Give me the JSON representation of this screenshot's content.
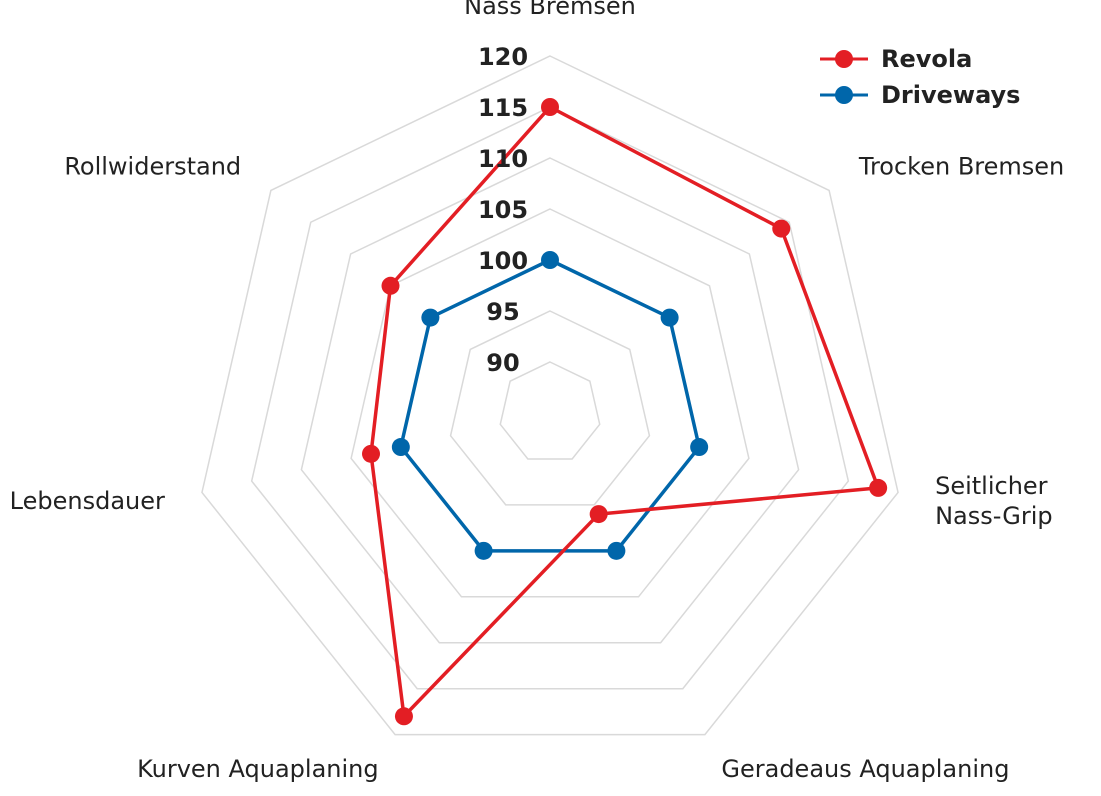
{
  "chart_data": {
    "type": "radar",
    "title": "",
    "axes": [
      "Nass Bremsen",
      "Trocken Bremsen",
      "Seitlicher Nass-Grip",
      "Geradeaus Aquaplaning",
      "Kurven Aquaplaning",
      "Lebensdauer",
      "Rollwiderstand"
    ],
    "axis_labels": [
      [
        "Nass Bremsen"
      ],
      [
        "Trocken Bremsen"
      ],
      [
        "Seitlicher",
        "Nass-Grip"
      ],
      [
        "Geradeaus Aquaplaning"
      ],
      [
        "Kurven Aquaplaning"
      ],
      [
        "Lebensdauer"
      ],
      [
        "Rollwiderstand"
      ]
    ],
    "range": [
      90,
      120
    ],
    "ticks": [
      90,
      95,
      100,
      105,
      110,
      115,
      120
    ],
    "tick_labels": [
      "90",
      "95",
      "100",
      "105",
      "110",
      "115",
      "120"
    ],
    "grid": true,
    "legend_position": "top-right",
    "series": [
      {
        "name": "Revola",
        "color": "#e31e24",
        "values": [
          115,
          114,
          118,
          96,
          118,
          103,
          105
        ]
      },
      {
        "name": "Driveways",
        "color": "#0066aa",
        "values": [
          100,
          100,
          100,
          100,
          100,
          100,
          100
        ]
      }
    ]
  }
}
